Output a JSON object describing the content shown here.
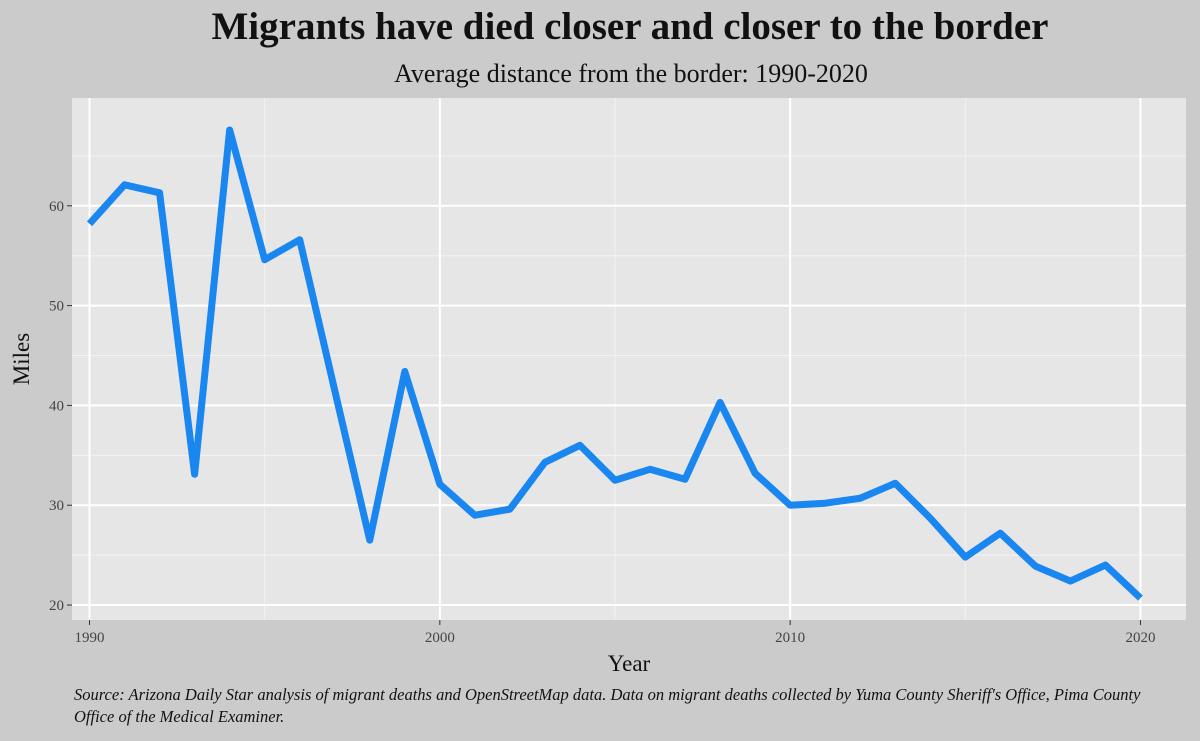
{
  "chart_data": {
    "type": "line",
    "title": "Migrants have died closer and closer to the border",
    "subtitle": "Average distance from the border: 1990-2020",
    "xlabel": "Year",
    "ylabel": "Miles",
    "xlim": [
      1989.5,
      2021.3
    ],
    "ylim": [
      18.5,
      70.8
    ],
    "x_ticks": [
      1990,
      2000,
      2010,
      2020
    ],
    "y_ticks": [
      20,
      30,
      40,
      50,
      60
    ],
    "y_minor_ticks": [
      25,
      35,
      45,
      55,
      65
    ],
    "grid": true,
    "line_color": "#1a86f0",
    "series": [
      {
        "x": [
          1990,
          1991,
          1992,
          1993,
          1994,
          1995,
          1996,
          1997,
          1998,
          1999,
          2000,
          2001,
          2002,
          2003,
          2004,
          2005,
          2006,
          2007,
          2008,
          2009,
          2010,
          2011,
          2012,
          2013,
          2014,
          2015,
          2016,
          2017,
          2018,
          2019,
          2020
        ],
        "values": [
          58.2,
          62.1,
          61.3,
          33.1,
          67.6,
          54.6,
          56.6,
          41.5,
          26.5,
          43.4,
          32.1,
          29.0,
          29.6,
          34.3,
          36.0,
          32.5,
          33.6,
          32.6,
          40.3,
          33.2,
          30.0,
          30.2,
          30.7,
          32.2,
          28.7,
          24.8,
          27.2,
          23.9,
          22.4,
          24.0,
          20.7
        ]
      }
    ],
    "source": "Source: Arizona Daily Star analysis of migrant deaths and OpenStreetMap data. Data on migrant deaths collected by Yuma County Sheriff's Office, Pima County Office of the Medical Examiner."
  }
}
